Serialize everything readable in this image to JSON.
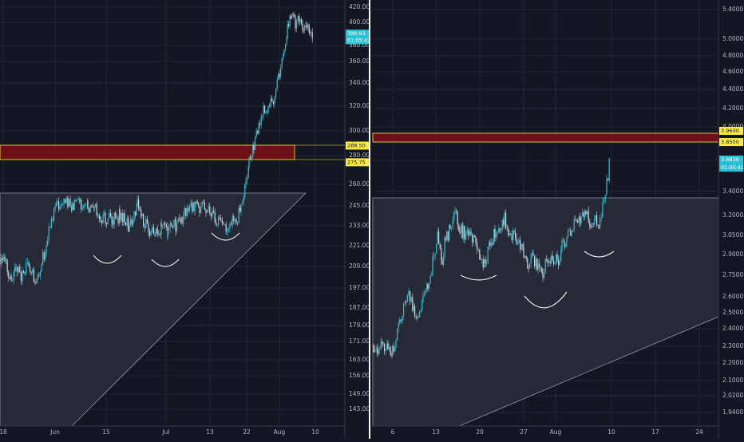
{
  "colors": {
    "background": "#131722",
    "grid": "#1f2433",
    "axis_text": "#b2b5be",
    "candle_up": "#26c6da",
    "candle_down": "#d1d4dc",
    "triangle_fill": "#2a2e39",
    "triangle_stroke": "#9598a1",
    "zone_fill": "#6d1018",
    "zone_stroke": "#ffeb3b",
    "label_yellow": "#ffeb3b",
    "label_cyan": "#26c6da",
    "separator": "#363a45"
  },
  "chart_data": [
    {
      "type": "candlestick",
      "log_scale": true,
      "ylim": [
        135,
        425
      ],
      "y_tick_labels": [
        "420.00",
        "400.00",
        "380.00",
        "360.00",
        "340.00",
        "320.00",
        "300.00",
        "280.00",
        "260.00",
        "245.00",
        "233.00",
        "221.00",
        "209.00",
        "197.00",
        "187.00",
        "179.00",
        "171.00",
        "163.00",
        "156.00",
        "149.00",
        "143.00"
      ],
      "x_tick_labels": [
        "18",
        "Jun",
        "15",
        "Jul",
        "13",
        "22",
        "Aug",
        "10"
      ],
      "price_labels": [
        {
          "value": 288.5,
          "text": "288.50",
          "style": "yellow"
        },
        {
          "value": 275.75,
          "text": "275.75",
          "style": "yellow"
        },
        {
          "value": 390.93,
          "text": "390.93",
          "style": "cyan"
        },
        {
          "value": 384.0,
          "text": "01:05:41",
          "style": "cyan"
        }
      ],
      "resistance_zone": [
        275.75,
        288.5
      ],
      "ascending_triangle": {
        "flat_top": 249.5,
        "start_low": 136.0
      },
      "path": [
        [
          0,
          214
        ],
        [
          6,
          210
        ],
        [
          14,
          201
        ],
        [
          20,
          208
        ],
        [
          28,
          204
        ],
        [
          36,
          210
        ],
        [
          44,
          202
        ],
        [
          52,
          211
        ],
        [
          58,
          220
        ],
        [
          66,
          240
        ],
        [
          72,
          245
        ],
        [
          80,
          248
        ],
        [
          90,
          245
        ],
        [
          100,
          247
        ],
        [
          110,
          244
        ],
        [
          118,
          246
        ],
        [
          126,
          234
        ],
        [
          132,
          238
        ],
        [
          140,
          236
        ],
        [
          150,
          239
        ],
        [
          156,
          238
        ],
        [
          162,
          232
        ],
        [
          168,
          240
        ],
        [
          172,
          247
        ],
        [
          178,
          236
        ],
        [
          186,
          232
        ],
        [
          194,
          226
        ],
        [
          202,
          231
        ],
        [
          210,
          229
        ],
        [
          220,
          233
        ],
        [
          228,
          238
        ],
        [
          236,
          244
        ],
        [
          244,
          246
        ],
        [
          250,
          243
        ],
        [
          258,
          244
        ],
        [
          266,
          238
        ],
        [
          272,
          234
        ],
        [
          280,
          232
        ],
        [
          288,
          234
        ],
        [
          296,
          237
        ],
        [
          302,
          243
        ],
        [
          308,
          258
        ],
        [
          312,
          275
        ],
        [
          318,
          290
        ],
        [
          324,
          302
        ],
        [
          330,
          316
        ],
        [
          336,
          322
        ],
        [
          344,
          330
        ],
        [
          350,
          350
        ],
        [
          356,
          372
        ],
        [
          360,
          398
        ],
        [
          364,
          408
        ],
        [
          370,
          402
        ],
        [
          376,
          405
        ],
        [
          380,
          400
        ],
        [
          384,
          393
        ],
        [
          388,
          396
        ],
        [
          392,
          391
        ]
      ]
    },
    {
      "type": "candlestick",
      "log_scale": true,
      "ylim": [
        1.88,
        5.55
      ],
      "y_tick_labels": [
        "5.4000",
        "5.0000",
        "4.8000",
        "4.6000",
        "4.4000",
        "4.2000",
        "4.0000",
        "3.8500",
        "3.6836",
        "3.4000",
        "3.2000",
        "3.0500",
        "2.9000",
        "2.7500",
        "2.6000",
        "2.5000",
        "2.4000",
        "2.3000",
        "2.2000",
        "2.1000",
        "2.0200",
        "1.9400"
      ],
      "x_tick_labels": [
        "6",
        "13",
        "20",
        "27",
        "Aug",
        "10",
        "17",
        "24"
      ],
      "price_labels": [
        {
          "value": 3.96,
          "text": "3.9600",
          "style": "yellow"
        },
        {
          "value": 3.85,
          "text": "3.8500",
          "style": "yellow"
        },
        {
          "value": 3.6836,
          "text": "3.6836",
          "style": "cyan"
        },
        {
          "value": 3.61,
          "text": "01:05:41",
          "style": "cyan"
        }
      ],
      "resistance_zone": [
        3.85,
        3.96
      ],
      "ascending_triangle": {
        "flat_top": 3.35,
        "start_low": 1.88
      },
      "path": [
        [
          468,
          2.3
        ],
        [
          474,
          2.26
        ],
        [
          480,
          2.31
        ],
        [
          486,
          2.27
        ],
        [
          490,
          2.24
        ],
        [
          496,
          2.33
        ],
        [
          504,
          2.5
        ],
        [
          512,
          2.63
        ],
        [
          518,
          2.52
        ],
        [
          524,
          2.48
        ],
        [
          530,
          2.58
        ],
        [
          536,
          2.68
        ],
        [
          542,
          2.84
        ],
        [
          548,
          3.02
        ],
        [
          554,
          2.86
        ],
        [
          558,
          3.0
        ],
        [
          564,
          3.1
        ],
        [
          570,
          3.25
        ],
        [
          576,
          3.1
        ],
        [
          582,
          3.06
        ],
        [
          590,
          3.02
        ],
        [
          596,
          2.98
        ],
        [
          602,
          2.82
        ],
        [
          608,
          2.86
        ],
        [
          614,
          2.96
        ],
        [
          620,
          3.06
        ],
        [
          626,
          3.12
        ],
        [
          632,
          3.17
        ],
        [
          638,
          3.08
        ],
        [
          644,
          3.03
        ],
        [
          650,
          3.0
        ],
        [
          656,
          2.9
        ],
        [
          662,
          2.84
        ],
        [
          668,
          2.87
        ],
        [
          674,
          2.82
        ],
        [
          680,
          2.78
        ],
        [
          686,
          2.86
        ],
        [
          692,
          2.88
        ],
        [
          698,
          2.84
        ],
        [
          704,
          2.95
        ],
        [
          710,
          3.04
        ],
        [
          716,
          3.1
        ],
        [
          722,
          3.2
        ],
        [
          728,
          3.17
        ],
        [
          734,
          3.25
        ],
        [
          740,
          3.12
        ],
        [
          746,
          3.22
        ],
        [
          750,
          3.09
        ],
        [
          755,
          3.26
        ],
        [
          760,
          3.45
        ],
        [
          764,
          3.72
        ]
      ]
    }
  ]
}
